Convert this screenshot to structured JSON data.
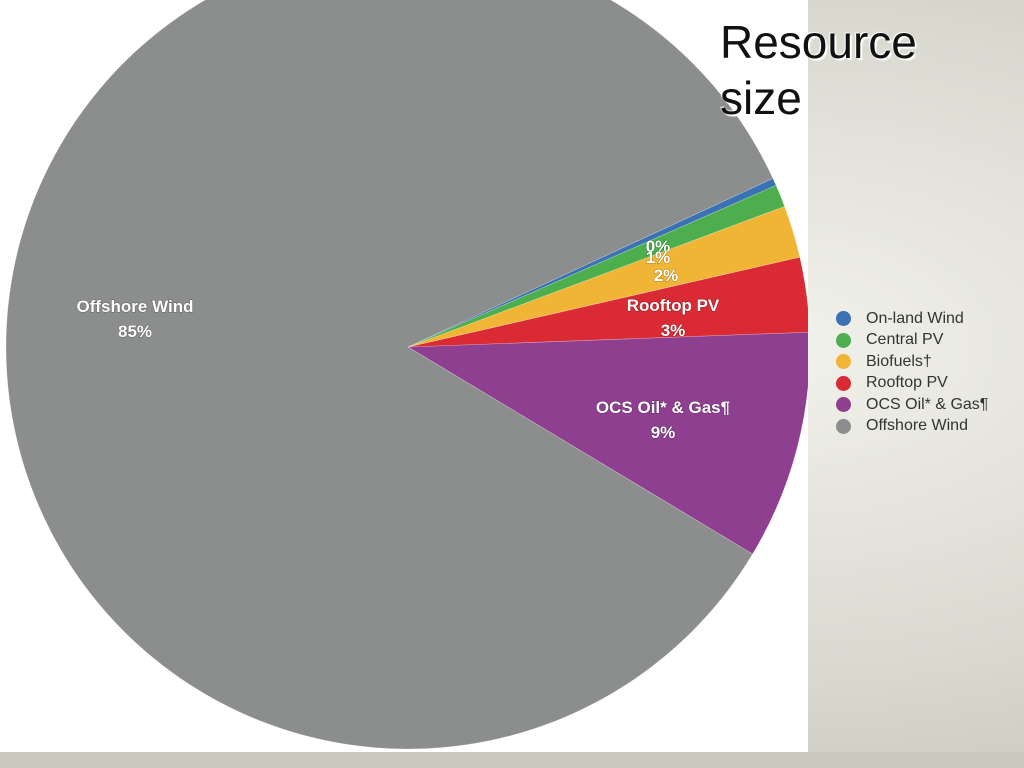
{
  "title": "Resource size",
  "chart_data": {
    "type": "pie",
    "title": "Resource size",
    "legend_position": "right",
    "slices": [
      {
        "name": "On-land Wind",
        "value": 0.3,
        "label_name": "",
        "label_value": "0%",
        "color": "#3a72b4"
      },
      {
        "name": "Central PV",
        "value": 0.9,
        "label_name": "",
        "label_value": "1%",
        "color": "#4cae4c"
      },
      {
        "name": "Biofuels†",
        "value": 2.1,
        "label_name": "",
        "label_value": "2%",
        "color": "#f0b534"
      },
      {
        "name": "Rooftop PV",
        "value": 3.0,
        "label_name": "Rooftop PV",
        "label_value": "3%",
        "color": "#da2a34"
      },
      {
        "name": "OCS Oil* & Gas¶",
        "value": 9.2,
        "label_name": "OCS Oil* & Gas¶",
        "label_value": "9%",
        "color": "#8e3f90"
      },
      {
        "name": "Offshore Wind",
        "value": 84.5,
        "label_name": "Offshore Wind",
        "label_value": "85%",
        "color": "#8c8e8d"
      }
    ]
  }
}
